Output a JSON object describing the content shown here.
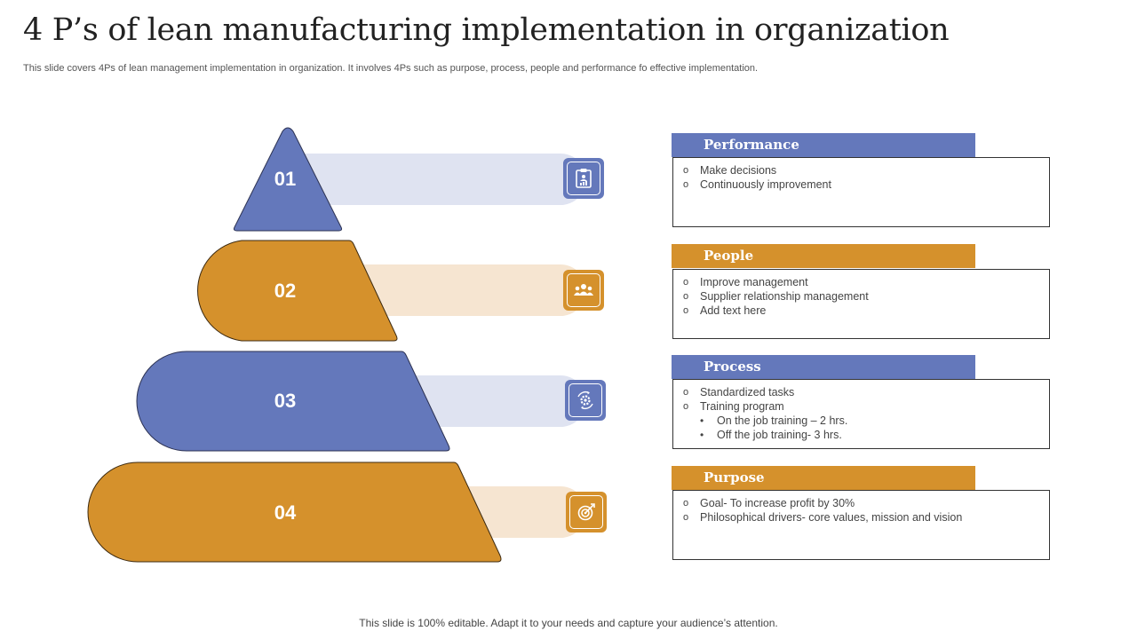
{
  "title": "4 P’s of lean manufacturing implementation in organization",
  "subtitle": "This slide covers 4Ps of lean management implementation in organization. It involves 4Ps such as purpose, process, people and performance fo effective implementation.",
  "footer": "This slide is 100% editable. Adapt it to your needs and capture your audience’s attention.",
  "colors": {
    "blue": "#6478bb",
    "orange": "#d5912c",
    "light_blue": "#dfe3f1",
    "light_orange": "#f6e5d1"
  },
  "levels": [
    {
      "number": "01",
      "color": "blue",
      "icon": "clipboard-chart-icon"
    },
    {
      "number": "02",
      "color": "orange",
      "icon": "team-icon"
    },
    {
      "number": "03",
      "color": "blue",
      "icon": "gear-process-icon"
    },
    {
      "number": "04",
      "color": "orange",
      "icon": "target-icon"
    }
  ],
  "cards": [
    {
      "title": "Performance",
      "color": "blue",
      "items": [
        {
          "marker": "o",
          "text": "Make decisions"
        },
        {
          "marker": "o",
          "text": "Continuously improvement"
        }
      ]
    },
    {
      "title": "People",
      "color": "orange",
      "items": [
        {
          "marker": "o",
          "text": "Improve  management"
        },
        {
          "marker": "o",
          "text": "Supplier relationship  management"
        },
        {
          "marker": "o",
          "text": "Add text here"
        }
      ]
    },
    {
      "title": "Process",
      "color": "blue",
      "items": [
        {
          "marker": "o",
          "text": "Standardized tasks"
        },
        {
          "marker": "o",
          "text": "Training  program"
        },
        {
          "marker": "•",
          "text": "On the job training – 2 hrs."
        },
        {
          "marker": "•",
          "text": "Off the job training- 3 hrs."
        }
      ]
    },
    {
      "title": "Purpose",
      "color": "orange",
      "items": [
        {
          "marker": "o",
          "text": "Goal- To increase profit by 30%"
        },
        {
          "marker": "o",
          "text": "Philosophical drivers-  core values,  mission and vision"
        }
      ]
    }
  ]
}
